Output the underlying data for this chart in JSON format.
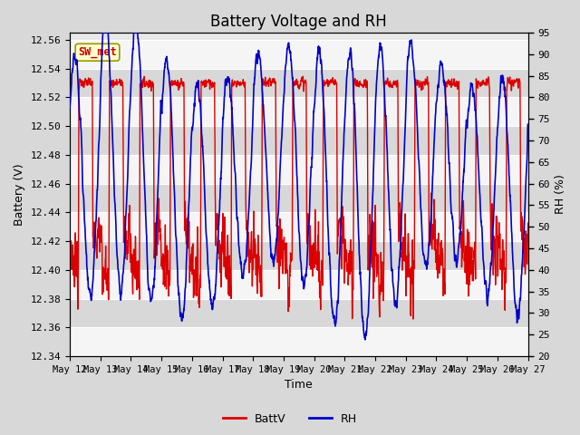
{
  "title": "Battery Voltage and RH",
  "xlabel": "Time",
  "ylabel_left": "Battery (V)",
  "ylabel_right": "RH (%)",
  "ylim_left": [
    12.34,
    12.565
  ],
  "ylim_right": [
    20,
    95
  ],
  "yticks_left": [
    12.34,
    12.36,
    12.38,
    12.4,
    12.42,
    12.44,
    12.46,
    12.48,
    12.5,
    12.52,
    12.54,
    12.56
  ],
  "yticks_right": [
    20,
    25,
    30,
    35,
    40,
    45,
    50,
    55,
    60,
    65,
    70,
    75,
    80,
    85,
    90,
    95
  ],
  "xtick_labels": [
    "May 12",
    "May 13",
    "May 14",
    "May 15",
    "May 16",
    "May 17",
    "May 18",
    "May 19",
    "May 20",
    "May 21",
    "May 22",
    "May 23",
    "May 24",
    "May 25",
    "May 26",
    "May 27"
  ],
  "n_days": 15,
  "annotation_text": "SW_met",
  "annotation_bg": "#ffffcc",
  "annotation_border": "#999900",
  "legend_entries": [
    "BattV",
    "RH"
  ],
  "line_color_batt": "#dd0000",
  "line_color_rh": "#0000cc",
  "bg_plot": "#e8e8e8",
  "band_light": "#f5f5f5",
  "band_dark": "#d8d8d8",
  "title_fontsize": 12,
  "axis_fontsize": 9,
  "tick_fontsize": 8,
  "figwidth": 6.4,
  "figheight": 4.8,
  "dpi": 100
}
